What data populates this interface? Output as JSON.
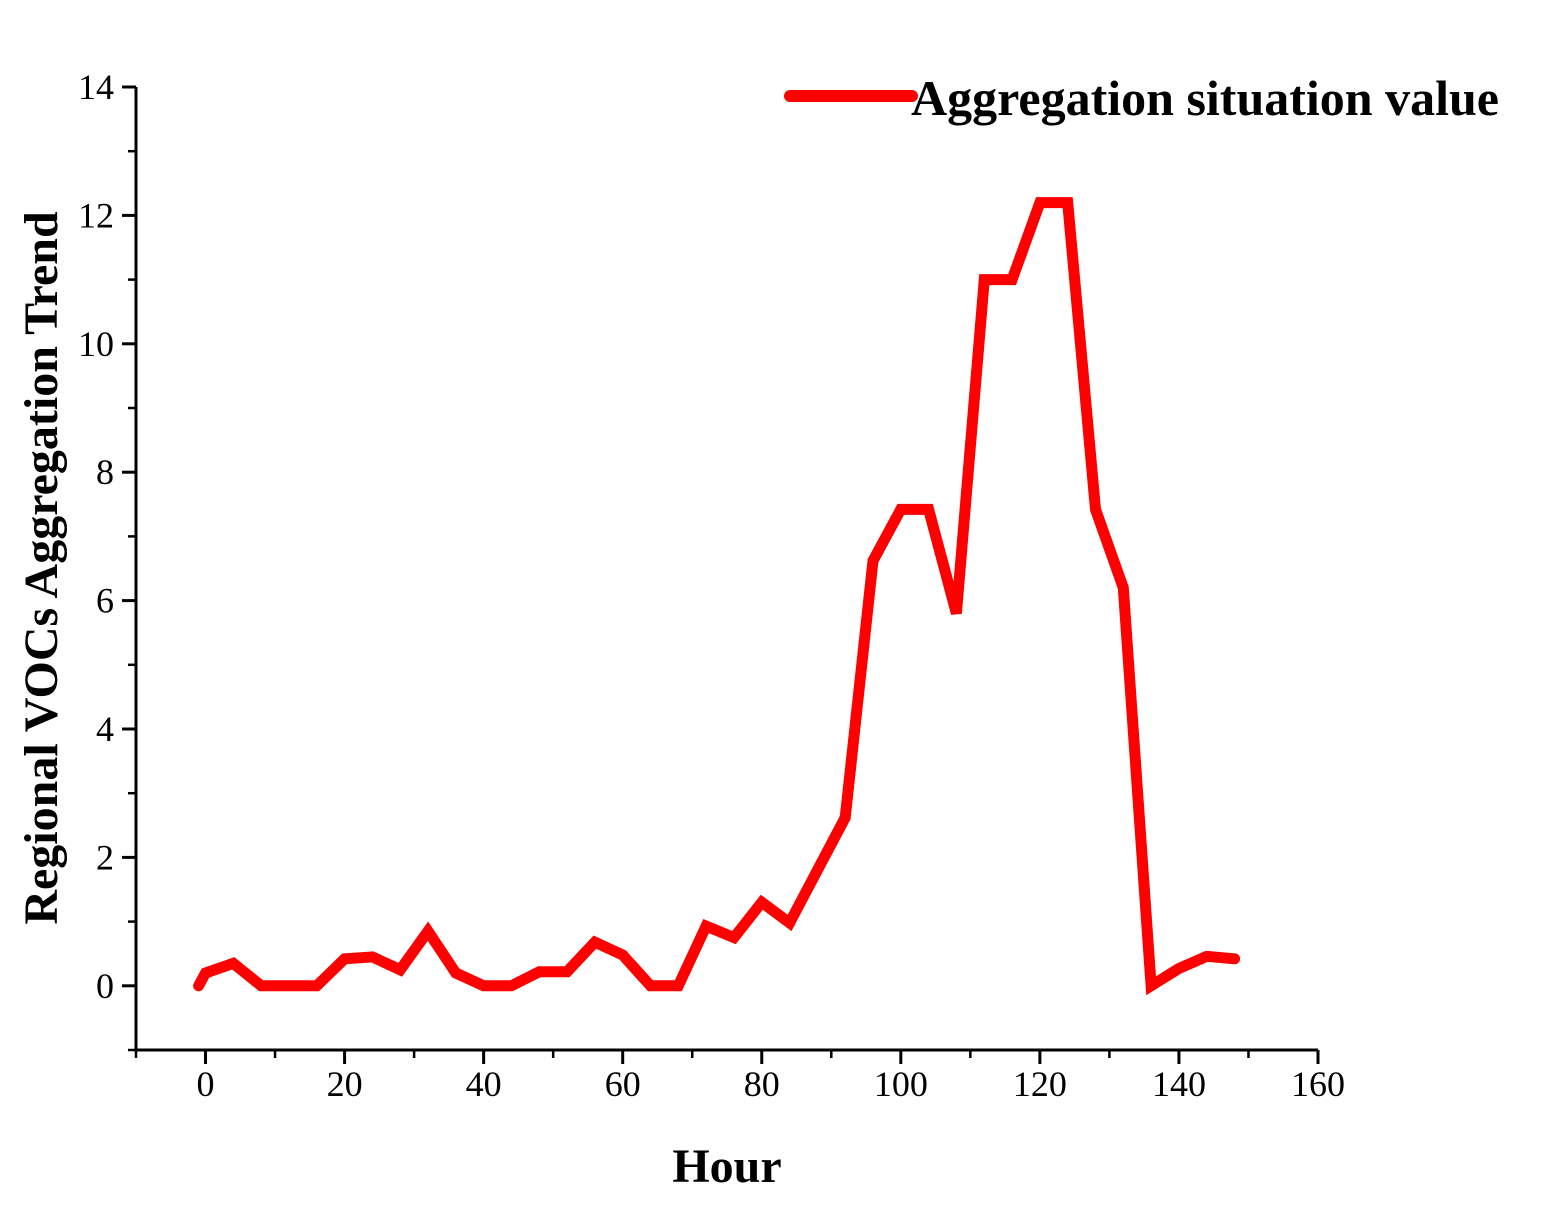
{
  "chart_data": {
    "type": "line",
    "title": "",
    "xlabel": "Hour",
    "ylabel": "Regional VOCs Aggregation Trend",
    "xlim": [
      -10,
      160
    ],
    "ylim": [
      -1,
      14
    ],
    "x_ticks": [
      0,
      20,
      40,
      60,
      80,
      100,
      120,
      140,
      160
    ],
    "y_ticks": [
      0,
      2,
      4,
      6,
      8,
      10,
      12,
      14
    ],
    "x_tick_labels": [
      "0",
      "20",
      "40",
      "60",
      "80",
      "100",
      "120",
      "140",
      "160"
    ],
    "y_tick_labels": [
      "0",
      "2",
      "4",
      "6",
      "8",
      "10",
      "12",
      "14"
    ],
    "x_minor_step": 10,
    "y_minor_step": 1,
    "grid": false,
    "legend_position": "top-right",
    "series": [
      {
        "name": "Aggregation situation value",
        "color": "#ff0000",
        "x": [
          -1,
          0,
          4,
          8,
          12,
          16,
          20,
          24,
          28,
          32,
          36,
          40,
          44,
          48,
          52,
          56,
          60,
          64,
          68,
          72,
          76,
          80,
          84,
          88,
          92,
          96,
          100,
          104,
          108,
          112,
          116,
          120,
          124,
          128,
          132,
          136,
          140,
          144,
          148
        ],
        "y": [
          0,
          0.2,
          0.35,
          0,
          0,
          0,
          0.42,
          0.45,
          0.25,
          0.85,
          0.2,
          0,
          0,
          0.22,
          0.22,
          0.68,
          0.48,
          0,
          0,
          0.93,
          0.75,
          1.3,
          0.98,
          1.8,
          2.62,
          6.62,
          7.42,
          7.42,
          5.8,
          11,
          11,
          12.2,
          12.2,
          7.42,
          6.2,
          0,
          0.27,
          0.46,
          0.42
        ]
      }
    ]
  }
}
